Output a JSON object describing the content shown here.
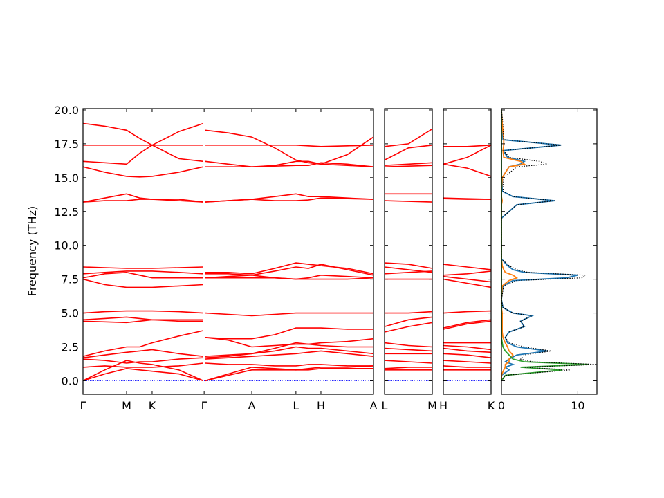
{
  "chart_data": [
    {
      "type": "line",
      "ylabel": "Frequency (THz)",
      "color": "#ff0000",
      "zero_line": {
        "value": 0,
        "color": "#0000ff"
      },
      "xlim": [
        0,
        1
      ],
      "ylim": [
        -1,
        20.1
      ],
      "xticks": [
        {
          "value": 0,
          "label": "Γ"
        },
        {
          "value": 0.15,
          "label": "M"
        },
        {
          "value": 0.238,
          "label": "K"
        },
        {
          "value": 0.417,
          "label": "Γ"
        },
        {
          "value": 0.581,
          "label": "A"
        },
        {
          "value": 0.733,
          "label": "L"
        },
        {
          "value": 0.819,
          "label": "H"
        },
        {
          "value": 1,
          "label": "A"
        }
      ],
      "yticks": [
        {
          "value": 0,
          "label": "0.0"
        },
        2.5,
        {
          "value": 5,
          "label": "5.0"
        },
        7.5,
        {
          "value": 10,
          "label": "10.0"
        },
        12.5,
        {
          "value": 15,
          "label": "15.0"
        },
        17.5,
        {
          "value": 20,
          "label": "20.0"
        }
      ],
      "ytick_labels": true,
      "x": [
        0,
        0.075,
        0.15,
        0.195,
        0.238,
        0.33,
        0.414,
        0.418,
        0.421,
        0.5,
        0.581,
        0.66,
        0.733,
        0.776,
        0.819,
        0.91,
        1
      ],
      "series": [
        {
          "values": [
            19.0,
            18.8,
            18.5,
            17.9,
            17.4,
            18.4,
            19.0,
            null,
            18.5,
            18.3,
            18.0,
            17.2,
            16.3,
            16.1,
            16.0,
            16.7,
            18.0
          ]
        },
        {
          "values": [
            17.4,
            17.4,
            17.4,
            17.4,
            17.4,
            17.4,
            17.4,
            null,
            17.4,
            17.4,
            17.4,
            17.4,
            17.4,
            17.35,
            17.3,
            17.35,
            17.4
          ]
        },
        {
          "values": [
            16.2,
            16.1,
            16.0,
            16.8,
            17.4,
            16.4,
            16.2,
            null,
            16.2,
            16.0,
            15.8,
            15.9,
            16.2,
            16.2,
            16.0,
            15.9,
            15.8
          ]
        },
        {
          "values": [
            15.8,
            15.4,
            15.1,
            15.05,
            15.1,
            15.4,
            15.8,
            null,
            15.8,
            15.8,
            15.8,
            15.85,
            15.9,
            15.9,
            16.1,
            16.0,
            15.8
          ]
        },
        {
          "values": [
            13.2,
            13.5,
            13.8,
            13.5,
            13.4,
            13.4,
            13.2,
            null,
            13.2,
            13.3,
            13.4,
            13.6,
            13.8,
            13.6,
            13.6,
            13.5,
            13.4
          ]
        },
        {
          "values": [
            13.2,
            13.3,
            13.3,
            13.4,
            13.4,
            13.3,
            13.2,
            null,
            13.2,
            13.3,
            13.4,
            13.3,
            13.3,
            13.35,
            13.5,
            13.45,
            13.4
          ]
        },
        {
          "values": [
            8.4,
            8.35,
            8.3,
            8.3,
            8.3,
            8.35,
            8.4,
            null,
            8.0,
            8.0,
            7.9,
            8.3,
            8.7,
            8.6,
            8.5,
            8.3,
            7.9
          ]
        },
        {
          "values": [
            7.9,
            8.0,
            8.1,
            8.1,
            8.1,
            8.0,
            7.9,
            null,
            7.9,
            7.9,
            7.8,
            8.1,
            8.4,
            8.3,
            8.6,
            8.2,
            7.8
          ]
        },
        {
          "values": [
            7.6,
            7.9,
            8.0,
            7.8,
            7.6,
            7.6,
            7.6,
            null,
            7.6,
            7.7,
            7.8,
            7.6,
            7.5,
            7.6,
            7.8,
            7.7,
            7.6
          ]
        },
        {
          "values": [
            7.5,
            7.1,
            6.9,
            6.9,
            6.9,
            7.0,
            7.1,
            null,
            7.6,
            7.6,
            7.6,
            7.6,
            7.5,
            7.5,
            7.5,
            7.5,
            7.6
          ]
        },
        {
          "values": [
            5.0,
            5.1,
            5.15,
            5.15,
            5.15,
            5.1,
            5.0,
            null,
            5.0,
            4.9,
            4.8,
            4.9,
            5.0,
            5.0,
            5.0,
            5.0,
            5.0
          ]
        },
        {
          "values": [
            4.5,
            4.6,
            4.7,
            4.6,
            4.5,
            4.5,
            4.5,
            null,
            3.2,
            3.1,
            3.1,
            3.4,
            3.9,
            3.9,
            3.9,
            3.8,
            3.8
          ]
        },
        {
          "values": [
            4.4,
            4.35,
            4.3,
            4.4,
            4.5,
            4.4,
            4.4,
            null,
            3.2,
            3.0,
            2.5,
            2.6,
            2.7,
            2.7,
            2.8,
            2.9,
            3.1
          ]
        },
        {
          "values": [
            1.8,
            2.2,
            2.5,
            2.5,
            2.8,
            3.3,
            3.7,
            null,
            1.8,
            1.9,
            2.0,
            2.4,
            2.8,
            2.7,
            2.6,
            2.5,
            2.5
          ]
        },
        {
          "values": [
            1.7,
            1.9,
            2.1,
            2.2,
            2.3,
            2.0,
            1.8,
            null,
            1.7,
            1.8,
            2.0,
            2.2,
            2.5,
            2.4,
            2.4,
            2.2,
            2.0
          ]
        },
        {
          "values": [
            1.6,
            1.5,
            1.3,
            1.4,
            1.4,
            1.6,
            1.7,
            null,
            1.6,
            1.7,
            1.8,
            1.9,
            2.0,
            2.1,
            2.2,
            2.0,
            1.8
          ]
        },
        {
          "values": [
            1.0,
            1.1,
            1.0,
            1.0,
            1.0,
            1.1,
            1.3,
            null,
            1.3,
            1.2,
            1.2,
            1.1,
            1.1,
            1.2,
            1.2,
            1.1,
            1.1
          ]
        },
        {
          "values": [
            0,
            0.8,
            1.5,
            1.3,
            1.2,
            0.8,
            0,
            null,
            0,
            0.5,
            1.0,
            0.9,
            0.8,
            0.9,
            1.0,
            1.0,
            1.1
          ]
        },
        {
          "values": [
            0,
            0.5,
            0.9,
            0.8,
            0.7,
            0.5,
            0,
            null,
            0,
            0.4,
            0.8,
            0.8,
            0.8,
            0.8,
            0.9,
            0.9,
            0.9
          ]
        }
      ]
    },
    {
      "type": "line",
      "color": "#ff0000",
      "zero_line": {
        "value": 0,
        "color": "#0000ff"
      },
      "xlim": [
        0,
        1
      ],
      "ylim": [
        -1,
        20.1
      ],
      "xticks": [
        {
          "value": 0,
          "label": "L"
        },
        {
          "value": 1,
          "label": "M"
        }
      ],
      "yticks": [
        0,
        2.5,
        5,
        7.5,
        10,
        12.5,
        15,
        17.5,
        20
      ],
      "ytick_labels": false,
      "x": [
        0,
        0.5,
        1
      ],
      "series": [
        {
          "values": [
            17.3,
            17.5,
            18.6
          ]
        },
        {
          "values": [
            16.3,
            17.2,
            17.4
          ]
        },
        {
          "values": [
            15.9,
            16.0,
            16.1
          ]
        },
        {
          "values": [
            15.8,
            15.85,
            15.9
          ]
        },
        {
          "values": [
            13.8,
            13.8,
            13.8
          ]
        },
        {
          "values": [
            13.3,
            13.25,
            13.2
          ]
        },
        {
          "values": [
            8.7,
            8.6,
            8.3
          ]
        },
        {
          "values": [
            8.4,
            8.2,
            8.0
          ]
        },
        {
          "values": [
            7.9,
            8.0,
            8.1
          ]
        },
        {
          "values": [
            7.5,
            7.5,
            7.5
          ]
        },
        {
          "values": [
            5.0,
            5.0,
            5.1
          ]
        },
        {
          "values": [
            4.0,
            4.5,
            4.7
          ]
        },
        {
          "values": [
            3.6,
            4.0,
            4.3
          ]
        },
        {
          "values": [
            2.8,
            2.6,
            2.5
          ]
        },
        {
          "values": [
            2.4,
            2.3,
            2.2
          ]
        },
        {
          "values": [
            2.0,
            2.0,
            2.0
          ]
        },
        {
          "values": [
            1.5,
            1.4,
            1.3
          ]
        },
        {
          "values": [
            0.9,
            1.0,
            1.0
          ]
        },
        {
          "values": [
            0.8,
            0.8,
            0.8
          ]
        }
      ]
    },
    {
      "type": "line",
      "color": "#ff0000",
      "zero_line": {
        "value": 0,
        "color": "#0000ff"
      },
      "xlim": [
        0,
        1
      ],
      "ylim": [
        -1,
        20.1
      ],
      "xticks": [
        {
          "value": 0,
          "label": "H"
        },
        {
          "value": 1,
          "label": "K"
        }
      ],
      "yticks": [
        0,
        2.5,
        5,
        7.5,
        10,
        12.5,
        15,
        17.5,
        20
      ],
      "ytick_labels": false,
      "x": [
        0,
        0.5,
        1
      ],
      "series": [
        {
          "values": [
            17.3,
            17.3,
            17.4
          ]
        },
        {
          "values": [
            16.0,
            16.5,
            17.4
          ]
        },
        {
          "values": [
            16.0,
            15.7,
            15.1
          ]
        },
        {
          "values": [
            13.5,
            13.45,
            13.4
          ]
        },
        {
          "values": [
            13.45,
            13.4,
            13.4
          ]
        },
        {
          "values": [
            8.6,
            8.4,
            8.2
          ]
        },
        {
          "values": [
            7.8,
            7.9,
            8.1
          ]
        },
        {
          "values": [
            7.7,
            7.5,
            7.3
          ]
        },
        {
          "values": [
            7.5,
            7.2,
            6.9
          ]
        },
        {
          "values": [
            5.0,
            5.1,
            5.15
          ]
        },
        {
          "values": [
            3.9,
            4.3,
            4.5
          ]
        },
        {
          "values": [
            3.8,
            4.2,
            4.4
          ]
        },
        {
          "values": [
            2.8,
            2.8,
            2.8
          ]
        },
        {
          "values": [
            2.6,
            2.5,
            2.3
          ]
        },
        {
          "values": [
            2.4,
            2.2,
            2.1
          ]
        },
        {
          "values": [
            2.0,
            1.9,
            1.7
          ]
        },
        {
          "values": [
            1.5,
            1.4,
            1.3
          ]
        },
        {
          "values": [
            1.1,
            1.0,
            1.0
          ]
        },
        {
          "values": [
            0.8,
            0.8,
            0.8
          ]
        }
      ]
    },
    {
      "type": "line",
      "orientation": "horizontal",
      "xlim": [
        0,
        12.5
      ],
      "ylim": [
        -1,
        20.1
      ],
      "xticks": [
        0,
        10
      ],
      "yticks": [
        0,
        2.5,
        5,
        7.5,
        10,
        12.5,
        15,
        17.5,
        20
      ],
      "ytick_labels": false,
      "y": [
        0,
        0.4,
        0.8,
        1.0,
        1.2,
        1.4,
        1.6,
        1.9,
        2.2,
        2.5,
        2.8,
        3.2,
        3.6,
        4.0,
        4.4,
        4.8,
        5.0,
        5.4,
        6.0,
        7.0,
        7.4,
        7.6,
        7.8,
        8.0,
        8.2,
        8.5,
        9.0,
        12.0,
        13.0,
        13.3,
        13.6,
        14.0,
        15.0,
        15.8,
        16.0,
        16.2,
        16.5,
        17.0,
        17.4,
        17.8,
        19.0,
        20.0
      ],
      "series": [
        {
          "color": "#1f77b4",
          "values": [
            0,
            0,
            1,
            0.5,
            1.5,
            0.5,
            1,
            2,
            6,
            2,
            0.8,
            0.5,
            1,
            3,
            2.5,
            4,
            1.5,
            0.2,
            0,
            0.2,
            1.5,
            8.5,
            10,
            3,
            1.5,
            0.8,
            0,
            0,
            2,
            7,
            1.5,
            0.1,
            0.1,
            1,
            2.5,
            3,
            0.8,
            0.2,
            7.8,
            0.2,
            0.1,
            0
          ]
        },
        {
          "color": "#ff7f0e",
          "values": [
            0,
            0,
            0.3,
            0.5,
            0.5,
            1,
            1,
            1.5,
            1,
            0.8,
            0.5,
            0.2,
            0.1,
            0.1,
            0.1,
            0.1,
            0.1,
            0,
            0,
            0.1,
            1,
            2,
            1.5,
            0.5,
            0.3,
            0.1,
            0,
            0,
            0,
            0.1,
            0,
            0,
            0.1,
            1,
            3,
            2.5,
            0.3,
            0.2,
            0.3,
            0.3,
            0.1,
            0
          ]
        },
        {
          "color": "#2ca02c",
          "values": [
            0,
            0.5,
            8,
            2.5,
            11.5,
            3,
            1.5,
            1,
            0.5,
            0.2,
            0.1,
            0,
            0,
            0,
            0,
            0,
            0,
            0,
            0,
            0,
            0,
            0,
            0,
            0,
            0,
            0,
            0,
            0,
            0,
            0,
            0,
            0,
            0,
            0,
            0,
            0,
            0,
            0,
            0,
            0,
            0,
            0
          ]
        },
        {
          "color": "#000000",
          "dash": "dotted",
          "values": [
            0,
            0.5,
            9,
            3,
            12.5,
            4,
            2.5,
            3,
            6.5,
            3,
            1,
            0.5,
            1,
            3,
            2.5,
            4,
            1.5,
            0.2,
            0,
            0.3,
            2,
            10.5,
            11,
            3.5,
            2,
            1,
            0,
            0,
            2,
            7,
            1.5,
            0.2,
            0.3,
            2,
            6,
            5,
            1,
            0.3,
            7.8,
            0.3,
            0.2,
            0
          ]
        }
      ]
    }
  ]
}
